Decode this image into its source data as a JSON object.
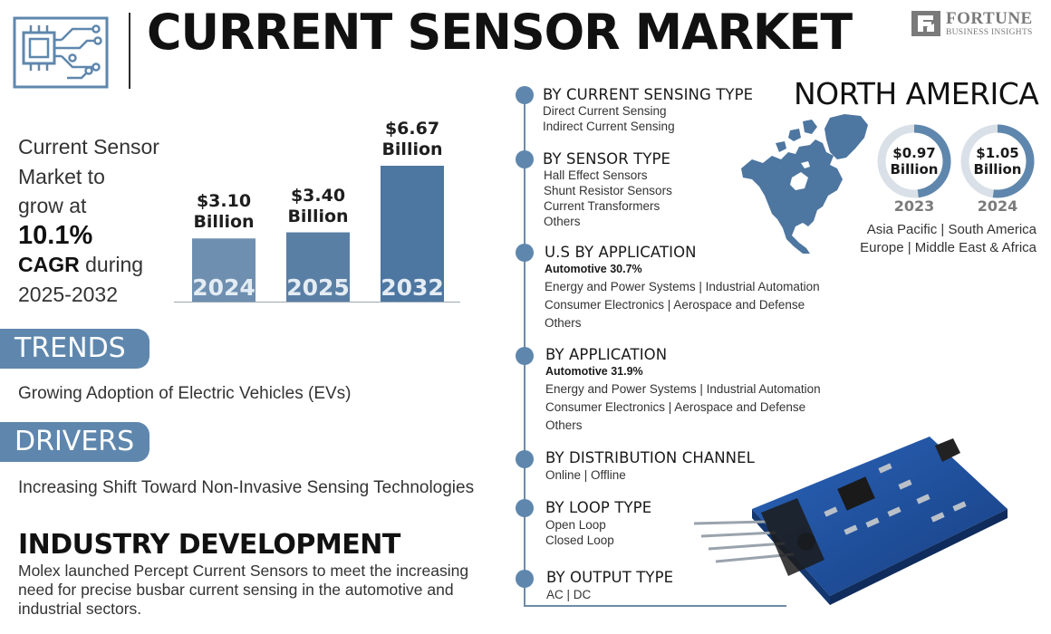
{
  "header": {
    "title": "CURRENT SENSOR MARKET",
    "icon": "circuit-chip-icon",
    "brand_name": "FORTUNE",
    "brand_sub": "BUSINESS INSIGHTS"
  },
  "cagr": {
    "line1": "Current Sensor",
    "line2": "Market to",
    "line3": "grow at",
    "rate": "10.1%",
    "cagr_word": "CAGR",
    "during": " during",
    "period": "2025-2032"
  },
  "chart_data": {
    "type": "bar",
    "categories": [
      "2024",
      "2025",
      "2032"
    ],
    "values": [
      3.1,
      3.4,
      6.67
    ],
    "value_labels": [
      "$3.10",
      "$3.40",
      "$6.67"
    ],
    "unit": "Billion",
    "colors": [
      "#6e8fb0",
      "#5a7fa5",
      "#4d76a0"
    ]
  },
  "trends": {
    "label": "TRENDS",
    "text": "Growing Adoption of Electric Vehicles (EVs)"
  },
  "drivers": {
    "label": "DRIVERS",
    "text": "Increasing Shift Toward Non-Invasive Sensing Technologies"
  },
  "industry": {
    "title": "INDUSTRY DEVELOPMENT",
    "text": "Molex launched Percept Current Sensors to meet the increasing need for precise busbar current sensing in the automotive and industrial sectors."
  },
  "segments": {
    "sensing_type": {
      "title": "BY CURRENT SENSING TYPE",
      "items": [
        "Direct Current Sensing",
        "Indirect Current Sensing"
      ]
    },
    "sensor_type": {
      "title": "BY SENSOR TYPE",
      "items": [
        "Hall Effect Sensors",
        "Shunt Resistor Sensors",
        "Current Transformers",
        "Others"
      ]
    },
    "us_application": {
      "title": "U.S BY APPLICATION",
      "lead": "Automotive 30.7%",
      "lines": [
        "Energy and Power Systems  |  Industrial Automation",
        "Consumer Electronics  |  Aerospace and Defense",
        "Others"
      ]
    },
    "application": {
      "title": "BY APPLICATION",
      "lead": "Automotive 31.9%",
      "lines": [
        "Energy and Power Systems  | Industrial Automation",
        "Consumer Electronics  |  Aerospace and Defense",
        "Others"
      ]
    },
    "distribution": {
      "title": "BY DISTRIBUTION CHANNEL",
      "items": [
        "Online  |  Offline"
      ]
    },
    "loop": {
      "title": "BY LOOP TYPE",
      "items": [
        "Open Loop",
        "Closed Loop"
      ]
    },
    "output": {
      "title": "BY OUTPUT TYPE",
      "items": [
        "AC  |  DC"
      ]
    }
  },
  "north_america": {
    "title": "NORTH AMERICA",
    "map_icon": "north-america-map-icon",
    "rings": [
      {
        "value": "$0.97",
        "unit": "Billion",
        "year": "2023",
        "fill": 0.48
      },
      {
        "value": "$1.05",
        "unit": "Billion",
        "year": "2024",
        "fill": 0.52
      }
    ],
    "regions_line1": "Asia Pacific  |  South America",
    "regions_line2": "Europe  |  Middle East & Africa"
  },
  "colors": {
    "accent": "#5f87ad",
    "ring_bg": "#d9e0e7",
    "pcb_blue": "#1f4e9a"
  },
  "decor": {
    "pcb_image": "current-sensor-board-icon"
  }
}
